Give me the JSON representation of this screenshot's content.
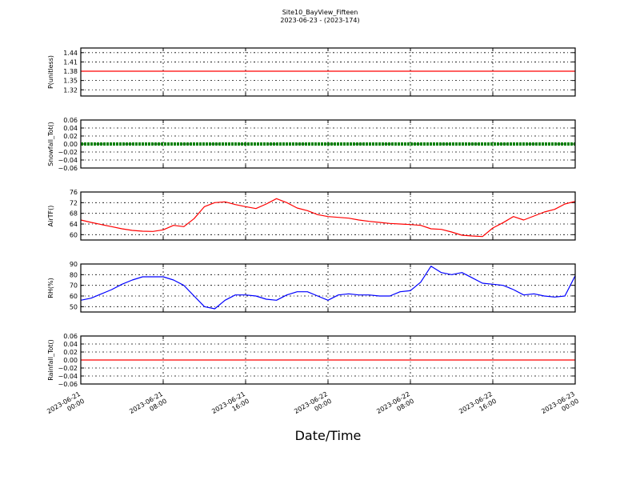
{
  "chart_data": {
    "type": "line",
    "title": "Site10_BayView_Fifteen",
    "subtitle": "2023-06-23 - (2023-174)",
    "xlabel": "Date/Time",
    "x_ticks": [
      {
        "line1": "2023-06-21",
        "line2": "00:00"
      },
      {
        "line1": "2023-06-21",
        "line2": "08:00"
      },
      {
        "line1": "2023-06-21",
        "line2": "16:00"
      },
      {
        "line1": "2023-06-22",
        "line2": "00:00"
      },
      {
        "line1": "2023-06-22",
        "line2": "08:00"
      },
      {
        "line1": "2023-06-22",
        "line2": "16:00"
      },
      {
        "line1": "2023-06-23",
        "line2": "00:00"
      }
    ],
    "x_range": [
      "2023-06-21 00:00",
      "2023-06-23 00:00"
    ],
    "x_step_hours": 1,
    "grid": true,
    "panels": [
      {
        "ylabel": "P(unitless)",
        "ylim": [
          1.3,
          1.455
        ],
        "yticks": [
          "1.44",
          "1.41",
          "1.38",
          "1.35",
          "1.32"
        ],
        "ytick_values": [
          1.44,
          1.41,
          1.38,
          1.35,
          1.32
        ],
        "color": "#ff0000",
        "style": "line",
        "values": [
          1.38,
          1.38,
          1.38,
          1.38,
          1.38,
          1.38,
          1.38,
          1.38,
          1.38,
          1.38,
          1.38,
          1.38,
          1.38,
          1.38,
          1.38,
          1.38,
          1.38,
          1.38,
          1.38,
          1.38,
          1.38,
          1.38,
          1.38,
          1.38,
          1.38,
          1.38,
          1.38,
          1.38,
          1.38,
          1.38,
          1.38,
          1.38,
          1.38,
          1.38,
          1.38,
          1.38,
          1.38,
          1.38,
          1.38,
          1.38,
          1.38,
          1.38,
          1.38,
          1.38,
          1.38,
          1.38,
          1.38,
          1.38,
          1.38
        ]
      },
      {
        "ylabel": "Snowfall_Tot()",
        "ylim": [
          -0.06,
          0.06
        ],
        "yticks": [
          "0.06",
          "0.04",
          "0.02",
          "0.00",
          "−0.02",
          "−0.04",
          "−0.06"
        ],
        "ytick_values": [
          0.06,
          0.04,
          0.02,
          0.0,
          -0.02,
          -0.04,
          -0.06
        ],
        "color": "#008000",
        "style": "thick",
        "values": [
          0,
          0,
          0,
          0,
          0,
          0,
          0,
          0,
          0,
          0,
          0,
          0,
          0,
          0,
          0,
          0,
          0,
          0,
          0,
          0,
          0,
          0,
          0,
          0,
          0,
          0,
          0,
          0,
          0,
          0,
          0,
          0,
          0,
          0,
          0,
          0,
          0,
          0,
          0,
          0,
          0,
          0,
          0,
          0,
          0,
          0,
          0,
          0,
          0
        ]
      },
      {
        "ylabel": "AirTF()",
        "ylim": [
          58,
          76
        ],
        "yticks": [
          "76",
          "72",
          "68",
          "64",
          "60"
        ],
        "ytick_values": [
          76,
          72,
          68,
          64,
          60
        ],
        "color": "#ff0000",
        "style": "line",
        "values": [
          65.5,
          64.6,
          63.8,
          63.0,
          62.2,
          61.6,
          61.3,
          61.2,
          61.8,
          63.5,
          63.0,
          66.0,
          70.5,
          72.0,
          72.3,
          71.3,
          70.5,
          69.8,
          71.5,
          73.5,
          72.0,
          70.0,
          69.0,
          67.5,
          66.8,
          66.5,
          66.2,
          65.5,
          65.0,
          64.6,
          64.2,
          64.0,
          63.8,
          63.5,
          62.2,
          62.0,
          61.0,
          59.8,
          59.5,
          59.3,
          62.5,
          64.5,
          66.8,
          65.5,
          67.0,
          68.5,
          69.5,
          71.5,
          72.5
        ]
      },
      {
        "ylabel": "RH(%)",
        "ylim": [
          45,
          90
        ],
        "yticks": [
          "90",
          "80",
          "70",
          "60",
          "50"
        ],
        "ytick_values": [
          90,
          80,
          70,
          60,
          50
        ],
        "color": "#0000ff",
        "style": "line",
        "values": [
          56,
          58,
          62,
          66,
          71,
          75,
          78,
          78,
          78,
          75,
          70,
          60,
          50,
          48,
          56,
          61,
          61,
          60,
          57,
          56,
          61,
          64,
          64,
          60,
          56,
          61,
          62,
          61,
          61,
          60,
          60,
          64,
          65,
          73,
          88,
          82,
          80,
          82,
          77,
          72,
          71,
          70,
          66,
          61,
          62,
          60,
          59,
          60,
          79
        ]
      },
      {
        "ylabel": "Rainfall_Tot()",
        "ylim": [
          -0.06,
          0.06
        ],
        "yticks": [
          "0.06",
          "0.04",
          "0.02",
          "0.00",
          "−0.02",
          "−0.04",
          "−0.06"
        ],
        "ytick_values": [
          0.06,
          0.04,
          0.02,
          0.0,
          -0.02,
          -0.04,
          -0.06
        ],
        "color": "#ff0000",
        "style": "line",
        "values": [
          0,
          0,
          0,
          0,
          0,
          0,
          0,
          0,
          0,
          0,
          0,
          0,
          0,
          0,
          0,
          0,
          0,
          0,
          0,
          0,
          0,
          0,
          0,
          0,
          0,
          0,
          0,
          0,
          0,
          0,
          0,
          0,
          0,
          0,
          0,
          0,
          0,
          0,
          0,
          0,
          0,
          0,
          0,
          0,
          0,
          0,
          0,
          0,
          0
        ]
      }
    ]
  }
}
